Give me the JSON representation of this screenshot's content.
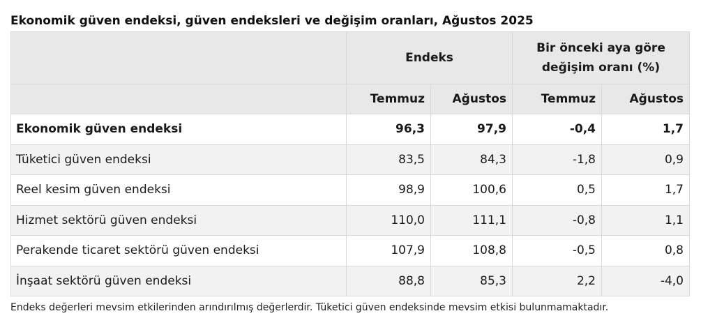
{
  "title": "Ekonomik güven endeksi, güven endeksleri ve değişim oranları, Ağustos 2025",
  "table": {
    "group_headers": {
      "index": "Endeks",
      "change_line1": "Bir önceki aya göre",
      "change_line2": "değişim oranı (%)"
    },
    "sub_headers": [
      "Temmuz",
      "Ağustos",
      "Temmuz",
      "Ağustos"
    ],
    "rows": [
      {
        "label": "Ekonomik güven endeksi",
        "values": [
          "96,3",
          "97,9",
          "-0,4",
          "1,7"
        ]
      },
      {
        "label": "Tüketici güven endeksi",
        "values": [
          "83,5",
          "84,3",
          "-1,8",
          "0,9"
        ]
      },
      {
        "label": "Reel kesim güven endeksi",
        "values": [
          "98,9",
          "100,6",
          "0,5",
          "1,7"
        ]
      },
      {
        "label": "Hizmet sektörü güven endeksi",
        "values": [
          "110,0",
          "111,1",
          "-0,8",
          "1,1"
        ]
      },
      {
        "label": "Perakende ticaret sektörü güven endeksi",
        "values": [
          "107,9",
          "108,8",
          "-0,5",
          "0,8"
        ]
      },
      {
        "label": "İnşaat sektörü güven endeksi",
        "values": [
          "88,8",
          "85,3",
          "2,2",
          "-4,0"
        ]
      }
    ]
  },
  "footnote": "Endeks değerleri mevsim etkilerinden arındırılmış değerlerdir. Tüketici güven endeksinde mevsim etkisi bulunmamaktadır."
}
